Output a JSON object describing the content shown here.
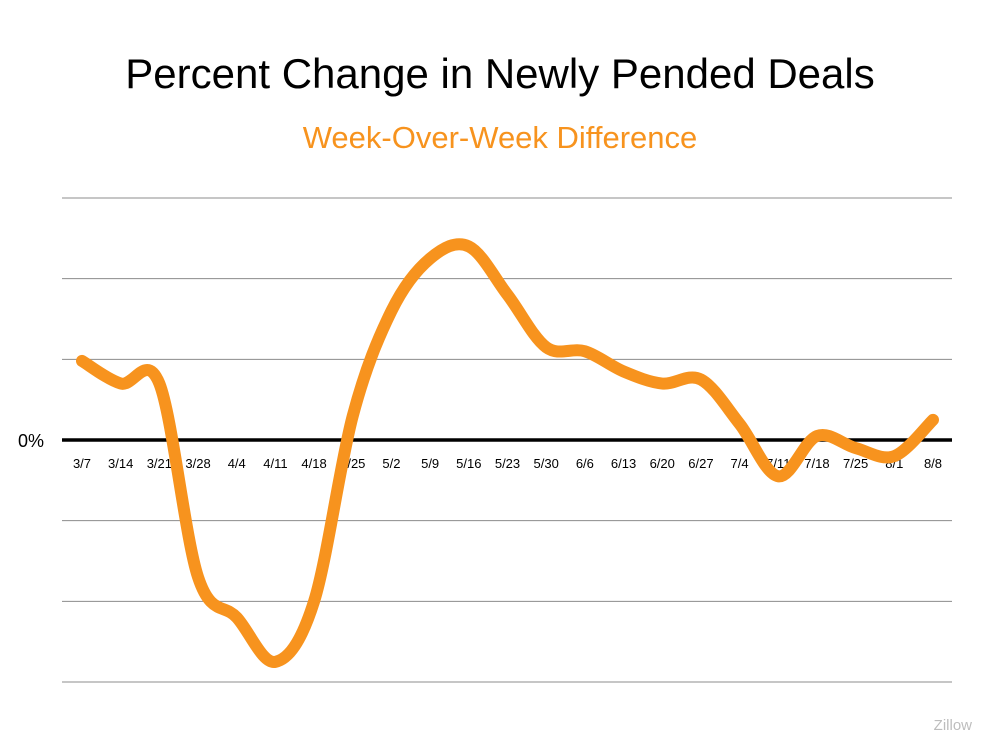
{
  "chart_data": {
    "type": "line",
    "title": "Percent Change in Newly Pended Deals",
    "subtitle": "Week-Over-Week Difference",
    "categories": [
      "3/7",
      "3/14",
      "3/21",
      "3/28",
      "4/4",
      "4/11",
      "4/18",
      "4/25",
      "5/2",
      "5/9",
      "5/16",
      "5/23",
      "5/30",
      "6/6",
      "6/13",
      "6/20",
      "6/27",
      "7/4",
      "7/11",
      "7/18",
      "7/25",
      "8/1",
      "8/8"
    ],
    "series": [
      {
        "values": [
          0.98,
          0.7,
          0.7,
          -1.7,
          -2.2,
          -2.75,
          -2.0,
          0.3,
          1.6,
          2.25,
          2.4,
          1.8,
          1.15,
          1.1,
          0.85,
          0.7,
          0.75,
          0.2,
          -0.45,
          0.05,
          -0.1,
          -0.2,
          0.25
        ]
      }
    ],
    "zero_label": "0%",
    "ylim": [
      -3.0,
      3.0
    ],
    "gridline_step": 1.0,
    "grid": true,
    "colors": {
      "line": "#f7931e",
      "grid": "#8c8c8c",
      "zero_line": "#000000",
      "title": "#000000",
      "subtitle": "#f7931e"
    }
  },
  "source": "Zillow"
}
